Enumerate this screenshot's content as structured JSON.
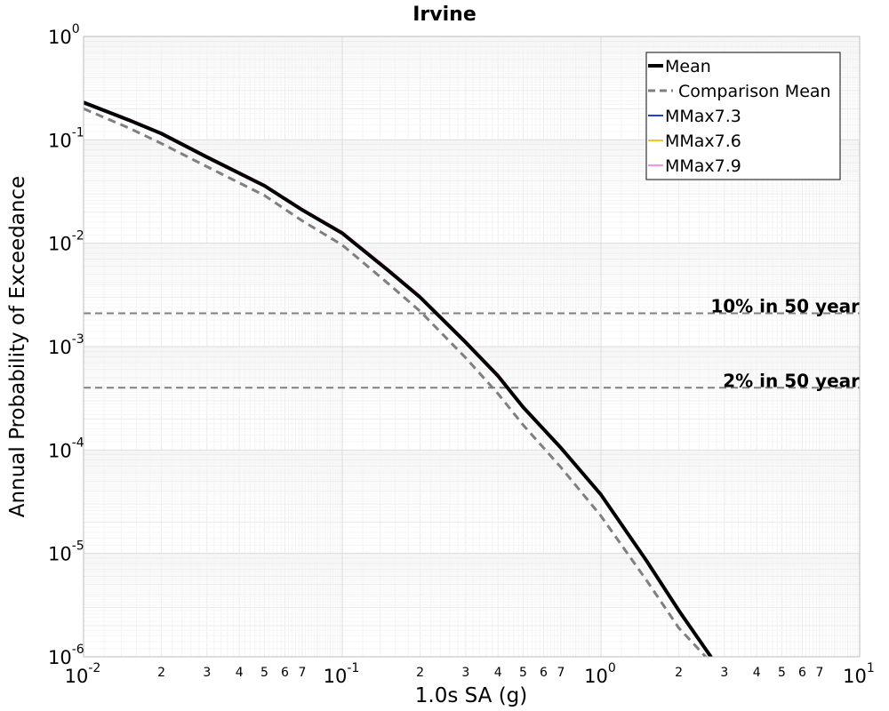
{
  "chart_data": {
    "type": "line",
    "title": "Irvine",
    "xlabel": "1.0s SA (g)",
    "ylabel": "Annual Probability of Exceedance",
    "xscale": "log",
    "yscale": "log",
    "xlim": [
      0.01,
      10
    ],
    "ylim": [
      1e-06,
      1
    ],
    "grid": true,
    "legend_position": "top-right",
    "x_major_ticks": [
      {
        "value": 0.01,
        "base": "10",
        "exp": "-2"
      },
      {
        "value": 0.1,
        "base": "10",
        "exp": "-1"
      },
      {
        "value": 1,
        "base": "10",
        "exp": "0"
      },
      {
        "value": 10,
        "base": "10",
        "exp": "1"
      }
    ],
    "x_minor_labels": [
      "2",
      "3",
      "4",
      "5",
      "6",
      "7"
    ],
    "y_major_ticks": [
      {
        "value": 1,
        "base": "10",
        "exp": "0"
      },
      {
        "value": 0.1,
        "base": "10",
        "exp": "-1"
      },
      {
        "value": 0.01,
        "base": "10",
        "exp": "-2"
      },
      {
        "value": 0.001,
        "base": "10",
        "exp": "-3"
      },
      {
        "value": 0.0001,
        "base": "10",
        "exp": "-4"
      },
      {
        "value": 1e-05,
        "base": "10",
        "exp": "-5"
      },
      {
        "value": 1e-06,
        "base": "10",
        "exp": "-6"
      }
    ],
    "reference_lines": [
      {
        "label": "10% in 50 year",
        "y": 0.0021
      },
      {
        "label": "2% in 50 year",
        "y": 0.0004
      }
    ],
    "series": [
      {
        "name": "Mean",
        "color": "#000000",
        "style": "solid",
        "width": 4,
        "x": [
          0.01,
          0.015,
          0.02,
          0.03,
          0.05,
          0.07,
          0.1,
          0.15,
          0.2,
          0.3,
          0.4,
          0.5,
          0.7,
          1.0,
          1.5,
          2.0,
          2.7
        ],
        "y": [
          0.23,
          0.155,
          0.115,
          0.068,
          0.036,
          0.021,
          0.0125,
          0.0055,
          0.003,
          0.0011,
          0.00052,
          0.00026,
          0.000105,
          3.7e-05,
          8.5e-06,
          2.8e-06,
          9.5e-07
        ]
      },
      {
        "name": "Comparison Mean",
        "color": "#7f7f7f",
        "style": "dashed",
        "width": 3,
        "x": [
          0.01,
          0.015,
          0.02,
          0.03,
          0.05,
          0.07,
          0.1,
          0.15,
          0.2,
          0.3,
          0.4,
          0.5,
          0.7,
          1.0,
          1.5,
          2.0,
          2.7
        ],
        "y": [
          0.2,
          0.13,
          0.092,
          0.055,
          0.029,
          0.0165,
          0.0096,
          0.0041,
          0.0022,
          0.00078,
          0.00035,
          0.000175,
          6.8e-05,
          2.3e-05,
          5.5e-06,
          1.9e-06,
          8.5e-07
        ]
      },
      {
        "name": "MMax7.3",
        "color": "#1f3fd8",
        "style": "solid",
        "width": 2,
        "x": [
          0.01,
          0.015,
          0.02,
          0.03,
          0.05,
          0.07,
          0.1,
          0.15,
          0.2,
          0.3,
          0.4,
          0.5,
          0.7,
          1.0,
          1.5,
          2.0,
          2.7
        ],
        "y": [
          0.225,
          0.152,
          0.113,
          0.067,
          0.0355,
          0.0207,
          0.0123,
          0.0054,
          0.00295,
          0.00108,
          0.00051,
          0.000255,
          0.000103,
          3.65e-05,
          8.4e-06,
          2.8e-06,
          9.5e-07
        ]
      },
      {
        "name": "MMax7.6",
        "color": "#f2c81e",
        "style": "solid",
        "width": 2,
        "x": [
          0.01,
          0.015,
          0.02,
          0.03,
          0.05,
          0.07,
          0.1,
          0.15,
          0.2,
          0.3,
          0.4,
          0.5,
          0.7,
          1.0,
          1.5,
          2.0,
          2.7
        ],
        "y": [
          0.23,
          0.156,
          0.116,
          0.069,
          0.0365,
          0.0213,
          0.0127,
          0.0056,
          0.00305,
          0.00112,
          0.00053,
          0.000263,
          0.000106,
          3.72e-05,
          8.6e-06,
          2.8e-06,
          9.5e-07
        ]
      },
      {
        "name": "MMax7.9",
        "color": "#ff8fe0",
        "style": "solid",
        "width": 2,
        "x": [
          0.01,
          0.015,
          0.02,
          0.03,
          0.05,
          0.07,
          0.1,
          0.15,
          0.2,
          0.3,
          0.4,
          0.5,
          0.7,
          1.0,
          1.5,
          2.0,
          2.7
        ],
        "y": [
          0.235,
          0.159,
          0.118,
          0.07,
          0.037,
          0.0216,
          0.0129,
          0.0057,
          0.0031,
          0.00114,
          0.00054,
          0.000268,
          0.000108,
          3.78e-05,
          8.7e-06,
          2.9e-06,
          9.6e-07
        ]
      }
    ]
  }
}
